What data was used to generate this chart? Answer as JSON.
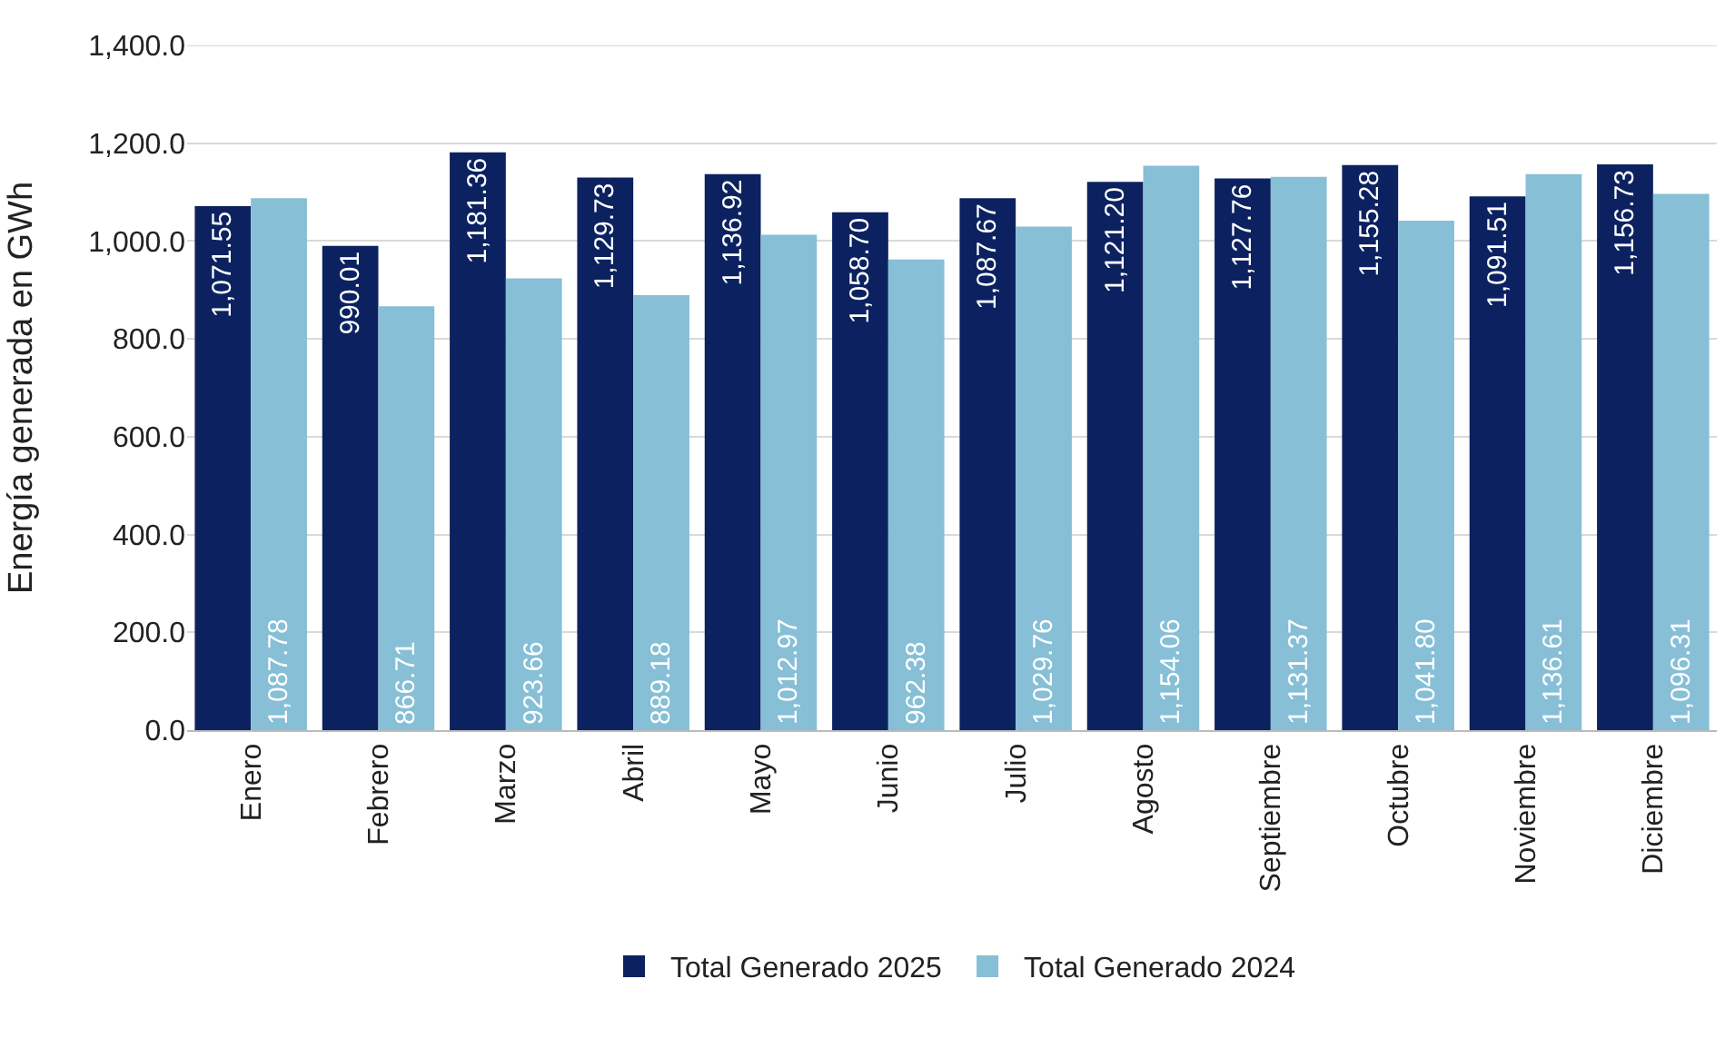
{
  "chart_data": {
    "type": "bar",
    "ylabel": "Energía generada en GWh",
    "categories": [
      "Enero",
      "Febrero",
      "Marzo",
      "Abril",
      "Mayo",
      "Junio",
      "Julio",
      "Agosto",
      "Septiembre",
      "Octubre",
      "Noviembre",
      "Diciembre"
    ],
    "series": [
      {
        "name": "Total Generado 2025",
        "color": "#0c2260",
        "values": [
          1071.55,
          990.01,
          1181.36,
          1129.73,
          1136.92,
          1058.7,
          1087.67,
          1121.2,
          1127.76,
          1155.28,
          1091.51,
          1156.73
        ],
        "value_labels": [
          "1,071.55",
          "990.01",
          "1,181.36",
          "1,129.73",
          "1,136.92",
          "1,058.70",
          "1,087.67",
          "1,121.20",
          "1,127.76",
          "1,155.28",
          "1,091.51",
          "1,156.73"
        ]
      },
      {
        "name": "Total Generado 2024",
        "color": "#86bfd6",
        "values": [
          1087.78,
          866.71,
          923.66,
          889.18,
          1012.97,
          962.38,
          1029.76,
          1154.06,
          1131.37,
          1041.8,
          1136.61,
          1096.31
        ],
        "value_labels": [
          "1,087.78",
          "866.71",
          "923.66",
          "889.18",
          "1,012.97",
          "962.38",
          "1,029.76",
          "1,154.06",
          "1,131.37",
          "1,041.80",
          "1,136.61",
          "1,096.31"
        ]
      }
    ],
    "ylim": [
      0,
      1400
    ],
    "yticks": [
      {
        "value": 0,
        "label": "0.0"
      },
      {
        "value": 200,
        "label": "200.0"
      },
      {
        "value": 400,
        "label": "400.0"
      },
      {
        "value": 600,
        "label": "600.0"
      },
      {
        "value": 800,
        "label": "800.0"
      },
      {
        "value": 1000,
        "label": "1,000.0"
      },
      {
        "value": 1200,
        "label": "1,200.0"
      },
      {
        "value": 1400,
        "label": "1,400.0"
      }
    ],
    "grid": "y",
    "legend": "bottom"
  }
}
